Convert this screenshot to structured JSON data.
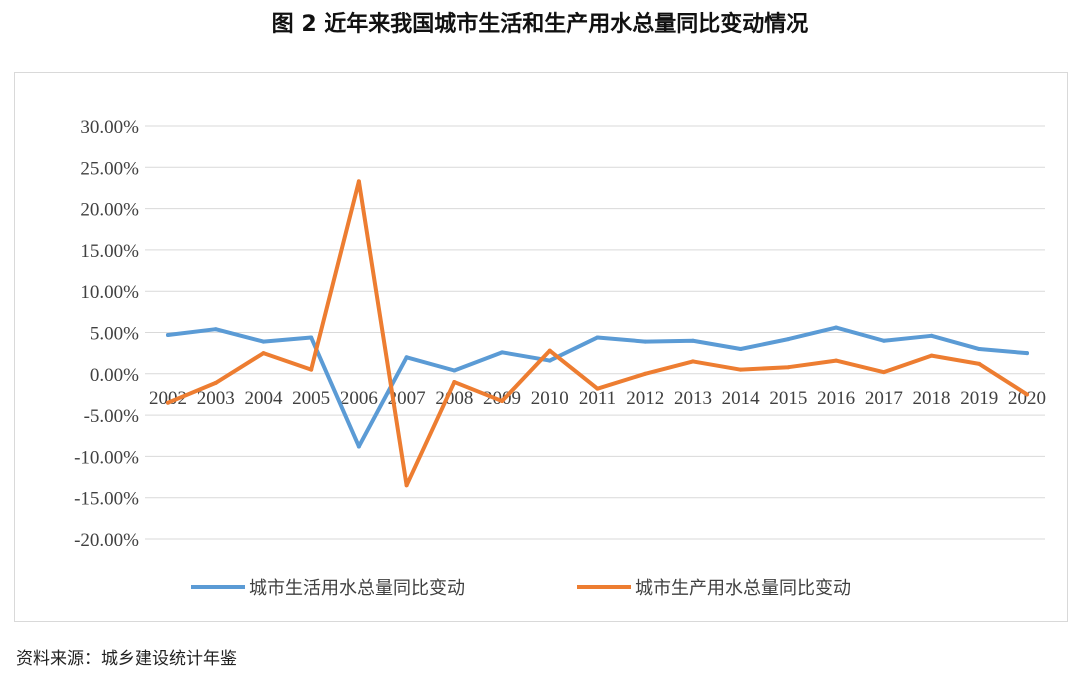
{
  "page": {
    "title": "图 2    近年来我国城市生活和生产用水总量同比变动情况",
    "source": "资料来源：城乡建设统计年鉴"
  },
  "chart_data": {
    "type": "line",
    "title": "",
    "xlabel": "",
    "ylabel": "",
    "categories": [
      "2002",
      "2003",
      "2004",
      "2005",
      "2006",
      "2007",
      "2008",
      "2009",
      "2010",
      "2011",
      "2012",
      "2013",
      "2014",
      "2015",
      "2016",
      "2017",
      "2018",
      "2019",
      "2020"
    ],
    "y_ticks": [
      30,
      25,
      20,
      15,
      10,
      5,
      0,
      -5,
      -10,
      -15,
      -20
    ],
    "y_tick_labels": [
      "30.00%",
      "25.00%",
      "20.00%",
      "15.00%",
      "10.00%",
      "5.00%",
      "0.00%",
      "-5.00%",
      "-10.00%",
      "-15.00%",
      "-20.00%"
    ],
    "ylim": [
      -20,
      30
    ],
    "grid": true,
    "legend_position": "bottom",
    "series": [
      {
        "name": "城市生活用水总量同比变动",
        "color": "#5b9bd5",
        "values": [
          4.7,
          5.4,
          3.9,
          4.4,
          -8.8,
          2.0,
          0.4,
          2.6,
          1.6,
          4.4,
          3.9,
          4.0,
          3.0,
          4.2,
          5.6,
          4.0,
          4.6,
          3.0,
          2.5
        ]
      },
      {
        "name": "城市生产用水总量同比变动",
        "color": "#ed7d31",
        "values": [
          -3.5,
          -1.1,
          2.5,
          0.5,
          23.3,
          -13.5,
          -1.0,
          -3.3,
          2.8,
          -1.8,
          0.0,
          1.5,
          0.5,
          0.8,
          1.6,
          0.2,
          2.2,
          1.2,
          -2.5
        ]
      }
    ]
  }
}
